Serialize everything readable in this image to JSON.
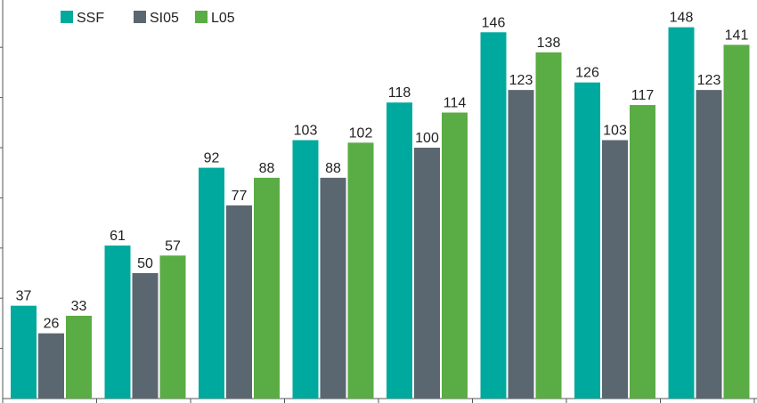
{
  "chart_data": {
    "type": "bar",
    "title": "",
    "xlabel": "",
    "ylabel": "",
    "ylim": [
      0,
      160
    ],
    "grid": false,
    "legend_position": "top-left",
    "categories": [
      "",
      "",
      "",
      "",
      "",
      "",
      "",
      ""
    ],
    "series": [
      {
        "name": "SSF",
        "color": "#00a99d",
        "values": [
          37,
          61,
          92,
          103,
          118,
          146,
          126,
          148
        ]
      },
      {
        "name": "SI05",
        "color": "#5b6770",
        "values": [
          26,
          50,
          77,
          88,
          100,
          123,
          103,
          123
        ]
      },
      {
        "name": "L05",
        "color": "#5aac44",
        "values": [
          33,
          57,
          88,
          102,
          114,
          138,
          117,
          141
        ]
      }
    ]
  }
}
